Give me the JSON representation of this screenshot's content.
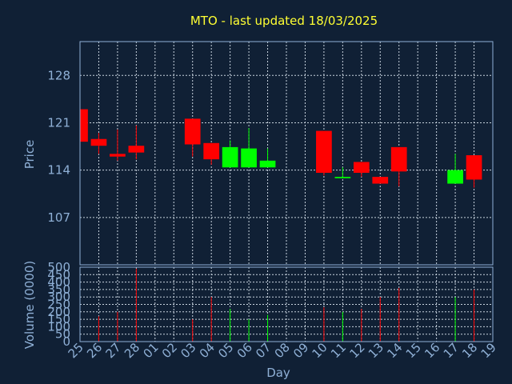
{
  "chart_data": {
    "type": "candlestick",
    "title": "MTO - last updated 18/03/2025",
    "xlabel": "Day",
    "price_panel": {
      "ylabel": "Price",
      "yticks": [
        107,
        114,
        121,
        128
      ],
      "ylim": [
        100,
        133
      ]
    },
    "volume_panel": {
      "ylabel": "Volume (0000)",
      "yticks": [
        0,
        50,
        100,
        150,
        200,
        250,
        300,
        350,
        400,
        450,
        500
      ],
      "ylim": [
        0,
        500
      ]
    },
    "days": [
      "25",
      "26",
      "27",
      "28",
      "01",
      "02",
      "03",
      "04",
      "05",
      "06",
      "07",
      "08",
      "09",
      "10",
      "11",
      "12",
      "13",
      "14",
      "15",
      "16",
      "17",
      "18",
      "19"
    ],
    "candles": [
      {
        "day": "25",
        "open": 123.0,
        "close": 118.2,
        "high": 123.0,
        "low": 118.2,
        "volume": null,
        "direction": "down"
      },
      {
        "day": "26",
        "open": 118.6,
        "close": 117.6,
        "high": 119.5,
        "low": 116.4,
        "volume": 170,
        "direction": "down"
      },
      {
        "day": "27",
        "open": 116.4,
        "close": 116.0,
        "high": 120.0,
        "low": 115.4,
        "volume": 200,
        "direction": "down"
      },
      {
        "day": "28",
        "open": 117.6,
        "close": 116.6,
        "high": 120.6,
        "low": 115.6,
        "volume": 490,
        "direction": "down"
      },
      {
        "day": "03",
        "open": 121.6,
        "close": 117.8,
        "high": 121.6,
        "low": 116.0,
        "volume": 150,
        "direction": "down"
      },
      {
        "day": "04",
        "open": 118.0,
        "close": 115.6,
        "high": 118.0,
        "low": 114.8,
        "volume": 300,
        "direction": "down"
      },
      {
        "day": "05",
        "open": 114.4,
        "close": 117.4,
        "high": 118.4,
        "low": 114.4,
        "volume": 220,
        "direction": "up"
      },
      {
        "day": "06",
        "open": 114.4,
        "close": 117.2,
        "high": 120.2,
        "low": 114.4,
        "volume": 150,
        "direction": "up"
      },
      {
        "day": "07",
        "open": 114.4,
        "close": 115.4,
        "high": 117.2,
        "low": 114.4,
        "volume": 180,
        "direction": "up"
      },
      {
        "day": "10",
        "open": 119.8,
        "close": 113.6,
        "high": 119.8,
        "low": 113.2,
        "volume": 230,
        "direction": "down"
      },
      {
        "day": "11",
        "open": 112.8,
        "close": 113.0,
        "high": 114.4,
        "low": 112.8,
        "volume": 200,
        "direction": "up"
      },
      {
        "day": "12",
        "open": 115.2,
        "close": 113.6,
        "high": 115.2,
        "low": 113.0,
        "volume": 220,
        "direction": "down"
      },
      {
        "day": "13",
        "open": 113.0,
        "close": 112.0,
        "high": 113.0,
        "low": 112.0,
        "volume": 300,
        "direction": "down"
      },
      {
        "day": "14",
        "open": 117.4,
        "close": 113.8,
        "high": 117.4,
        "low": 111.6,
        "volume": 360,
        "direction": "down"
      },
      {
        "day": "17",
        "open": 112.0,
        "close": 114.0,
        "high": 116.4,
        "low": 112.0,
        "volume": 300,
        "direction": "up"
      },
      {
        "day": "18",
        "open": 116.2,
        "close": 112.6,
        "high": 116.2,
        "low": 111.4,
        "volume": 350,
        "direction": "down"
      }
    ]
  },
  "colors": {
    "background": "#102035",
    "up": "#00ff00",
    "down": "#ff0000",
    "title": "#ffff33",
    "axis_text": "#8fb0d6",
    "grid": "#c8d3de"
  }
}
